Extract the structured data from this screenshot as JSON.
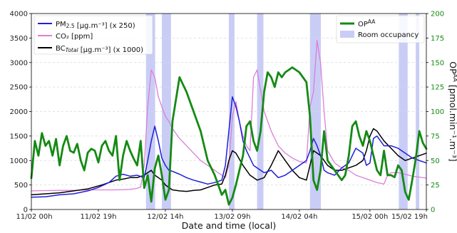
{
  "colors": {
    "pm25": "#1f1fd8",
    "co2": "#da7fd6",
    "bc": "#000000",
    "op": "#148a14",
    "occupancy": "#c9cdf6",
    "right_axis": "#148a14"
  },
  "chart_data": {
    "type": "line",
    "xlabel": "Date and time (local)",
    "ylabel_right": "OP^AA [pmol.min⁻¹.m⁻³]",
    "ylim_left": [
      0,
      4000
    ],
    "ylim_right": [
      0,
      200
    ],
    "xlim_hours": [
      0,
      112
    ],
    "left_ticks": [
      "0",
      "500",
      "1000",
      "1500",
      "2000",
      "2500",
      "3000",
      "3500",
      "4000"
    ],
    "right_ticks": [
      "0",
      "25",
      "50",
      "75",
      "100",
      "125",
      "150",
      "175",
      "200"
    ],
    "x_ticks": [
      {
        "label": "11/02 00h",
        "hour": 0
      },
      {
        "label": "11/02 19h",
        "hour": 19
      },
      {
        "label": "12/02 14h",
        "hour": 38
      },
      {
        "label": "13/02 09h",
        "hour": 57
      },
      {
        "label": "14/02 04h",
        "hour": 76
      },
      {
        "label": "15/02 00h",
        "hour": 96
      },
      {
        "label": "15/02 19h",
        "hour": 115
      }
    ],
    "grid": "horizontal dashed",
    "legend_left": "top-left",
    "legend_right": "top-right",
    "occupancy_periods": [
      [
        32.5,
        35.1
      ],
      [
        37.0,
        39.6
      ],
      [
        56.0,
        57.6
      ],
      [
        64.0,
        65.8
      ],
      [
        79.0,
        82.1
      ],
      [
        104.2,
        106.7
      ],
      [
        109.0,
        110.0
      ]
    ],
    "series": [
      {
        "key": "pm25",
        "name": "PM2.5 [µg.m⁻³] (x 250)",
        "axis": "left",
        "x": [
          0,
          4,
          8,
          12,
          16,
          19,
          22,
          24,
          26,
          28,
          30,
          32,
          33,
          34,
          35,
          36,
          37,
          38,
          39,
          40,
          42,
          44,
          46,
          48,
          50,
          52,
          54,
          55,
          56,
          57,
          58,
          59,
          60,
          61,
          62,
          63,
          64,
          65,
          66,
          68,
          70,
          72,
          74,
          76,
          78,
          79,
          80,
          81,
          82,
          83,
          84,
          86,
          88,
          90,
          92,
          94,
          95,
          96,
          97,
          98,
          99,
          100,
          102,
          104,
          106,
          108,
          110,
          112
        ],
        "y": [
          250,
          260,
          300,
          320,
          380,
          450,
          550,
          680,
          720,
          680,
          700,
          650,
          1000,
          1400,
          1700,
          1400,
          1050,
          900,
          800,
          780,
          720,
          650,
          600,
          560,
          520,
          550,
          600,
          900,
          1600,
          2300,
          2100,
          1800,
          1400,
          1200,
          1050,
          900,
          850,
          800,
          750,
          800,
          650,
          700,
          800,
          900,
          1000,
          1200,
          1450,
          1300,
          1100,
          800,
          750,
          700,
          850,
          950,
          1250,
          1150,
          900,
          950,
          1450,
          1500,
          1400,
          1300,
          1300,
          1250,
          1150,
          1050,
          1000,
          950
        ]
      },
      {
        "key": "co2",
        "name": "CO₂ [ppm]",
        "axis": "left",
        "x": [
          0,
          4,
          8,
          12,
          16,
          20,
          24,
          28,
          30,
          31,
          32,
          33,
          34,
          35,
          36,
          37,
          38,
          39,
          40,
          42,
          44,
          46,
          48,
          50,
          52,
          54,
          55,
          56,
          57,
          58,
          59,
          60,
          61,
          62,
          63,
          64,
          66,
          68,
          70,
          72,
          74,
          76,
          78,
          79,
          80,
          81,
          82,
          83,
          84,
          86,
          88,
          90,
          92,
          94,
          96,
          98,
          100,
          101,
          102,
          104,
          106,
          108,
          110,
          112
        ],
        "y": [
          380,
          385,
          390,
          390,
          400,
          400,
          400,
          410,
          430,
          460,
          900,
          2100,
          2850,
          2700,
          2300,
          2100,
          1900,
          1800,
          1650,
          1450,
          1300,
          1150,
          1000,
          900,
          800,
          700,
          650,
          900,
          1900,
          2200,
          1800,
          1500,
          1300,
          1200,
          2700,
          2850,
          2000,
          1600,
          1300,
          1150,
          1050,
          980,
          950,
          2100,
          2400,
          3450,
          3000,
          2000,
          1200,
          950,
          850,
          800,
          700,
          650,
          600,
          550,
          520,
          700,
          750,
          750,
          720,
          680,
          660,
          640
        ]
      },
      {
        "key": "bc",
        "name": "BC_Total [µg.m⁻³] (x 1000)",
        "axis": "left",
        "x": [
          0,
          4,
          8,
          12,
          16,
          20,
          22,
          24,
          26,
          28,
          30,
          32,
          33,
          34,
          35,
          36,
          37,
          38,
          39,
          40,
          42,
          44,
          46,
          48,
          50,
          52,
          54,
          55,
          56,
          57,
          58,
          60,
          62,
          64,
          66,
          68,
          70,
          72,
          74,
          76,
          78,
          79,
          80,
          81,
          82,
          84,
          86,
          88,
          90,
          92,
          94,
          95,
          96,
          97,
          98,
          99,
          100,
          102,
          104,
          106,
          108,
          110,
          112
        ],
        "y": [
          300,
          320,
          340,
          380,
          420,
          500,
          550,
          600,
          620,
          650,
          650,
          700,
          750,
          800,
          700,
          650,
          600,
          500,
          450,
          400,
          380,
          370,
          390,
          400,
          450,
          500,
          520,
          700,
          1000,
          1200,
          1150,
          900,
          700,
          600,
          650,
          900,
          1200,
          1000,
          800,
          650,
          600,
          900,
          1200,
          1150,
          1100,
          900,
          800,
          800,
          850,
          900,
          1000,
          1200,
          1500,
          1650,
          1600,
          1500,
          1400,
          1250,
          1100,
          1000,
          1050,
          1100,
          1150
        ]
      },
      {
        "key": "op",
        "name": "OP^AA",
        "axis": "right",
        "x": [
          0,
          1,
          2,
          3,
          4,
          5,
          6,
          7,
          8,
          9,
          10,
          11,
          12,
          13,
          14,
          15,
          16,
          17,
          18,
          19,
          20,
          21,
          22,
          23,
          24,
          25,
          26,
          27,
          28,
          29,
          30,
          31,
          32,
          33,
          34,
          35,
          36,
          37,
          38,
          39,
          40,
          42,
          44,
          46,
          48,
          50,
          52,
          54,
          55,
          56,
          57,
          58,
          59,
          60,
          61,
          62,
          63,
          64,
          65,
          66,
          67,
          68,
          69,
          70,
          71,
          72,
          74,
          76,
          78,
          79,
          80,
          81,
          82,
          83,
          84,
          85,
          86,
          87,
          88,
          89,
          90,
          91,
          92,
          93,
          94,
          95,
          96,
          97,
          98,
          99,
          100,
          101,
          102,
          103,
          104,
          105,
          106,
          107,
          108,
          109,
          110,
          111,
          112
        ],
        "y": [
          32,
          70,
          55,
          78,
          65,
          70,
          55,
          72,
          45,
          65,
          75,
          60,
          58,
          67,
          50,
          40,
          58,
          62,
          60,
          48,
          65,
          70,
          60,
          55,
          75,
          30,
          55,
          70,
          60,
          52,
          45,
          70,
          22,
          35,
          8,
          42,
          55,
          35,
          10,
          20,
          90,
          135,
          120,
          100,
          80,
          50,
          35,
          15,
          20,
          5,
          12,
          25,
          40,
          55,
          85,
          90,
          70,
          60,
          80,
          120,
          140,
          135,
          125,
          140,
          135,
          140,
          145,
          140,
          130,
          95,
          30,
          20,
          40,
          80,
          50,
          45,
          40,
          35,
          30,
          35,
          55,
          85,
          90,
          75,
          65,
          80,
          70,
          55,
          40,
          35,
          60,
          35,
          35,
          33,
          45,
          40,
          18,
          10,
          30,
          52,
          80,
          68,
          62
        ]
      }
    ],
    "legend_right_entries": [
      {
        "key": "op",
        "label": "OP^AA",
        "style": "line"
      },
      {
        "key": "occupancy",
        "label": "Room occupancy",
        "style": "patch"
      }
    ]
  }
}
